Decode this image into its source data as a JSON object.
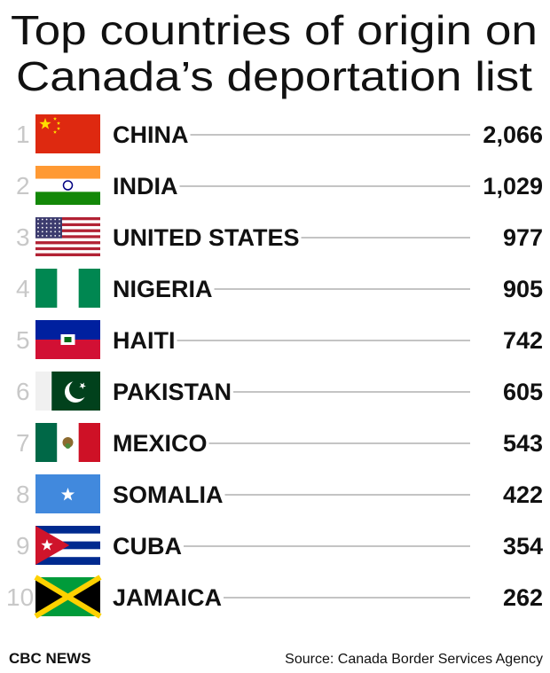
{
  "header": {
    "title_lines": [
      "Top countries of origin on",
      "Canada’s deportation list"
    ]
  },
  "rows": [
    {
      "rank": 1,
      "country": "CHINA",
      "value": "2,066"
    },
    {
      "rank": 2,
      "country": "INDIA",
      "value": "1,029"
    },
    {
      "rank": 3,
      "country": "UNITED STATES",
      "value": "977"
    },
    {
      "rank": 4,
      "country": "NIGERIA",
      "value": "905"
    },
    {
      "rank": 5,
      "country": "HAITI",
      "value": "742"
    },
    {
      "rank": 6,
      "country": "PAKISTAN",
      "value": "605"
    },
    {
      "rank": 7,
      "country": "MEXICO",
      "value": "543"
    },
    {
      "rank": 8,
      "country": "SOMALIA",
      "value": "422"
    },
    {
      "rank": 9,
      "country": "CUBA",
      "value": "354"
    },
    {
      "rank": 10,
      "country": "JAMAICA",
      "value": "262"
    }
  ],
  "footer": {
    "brand": "CBC NEWS",
    "source": "Source: Canada Border Services Agency"
  }
}
